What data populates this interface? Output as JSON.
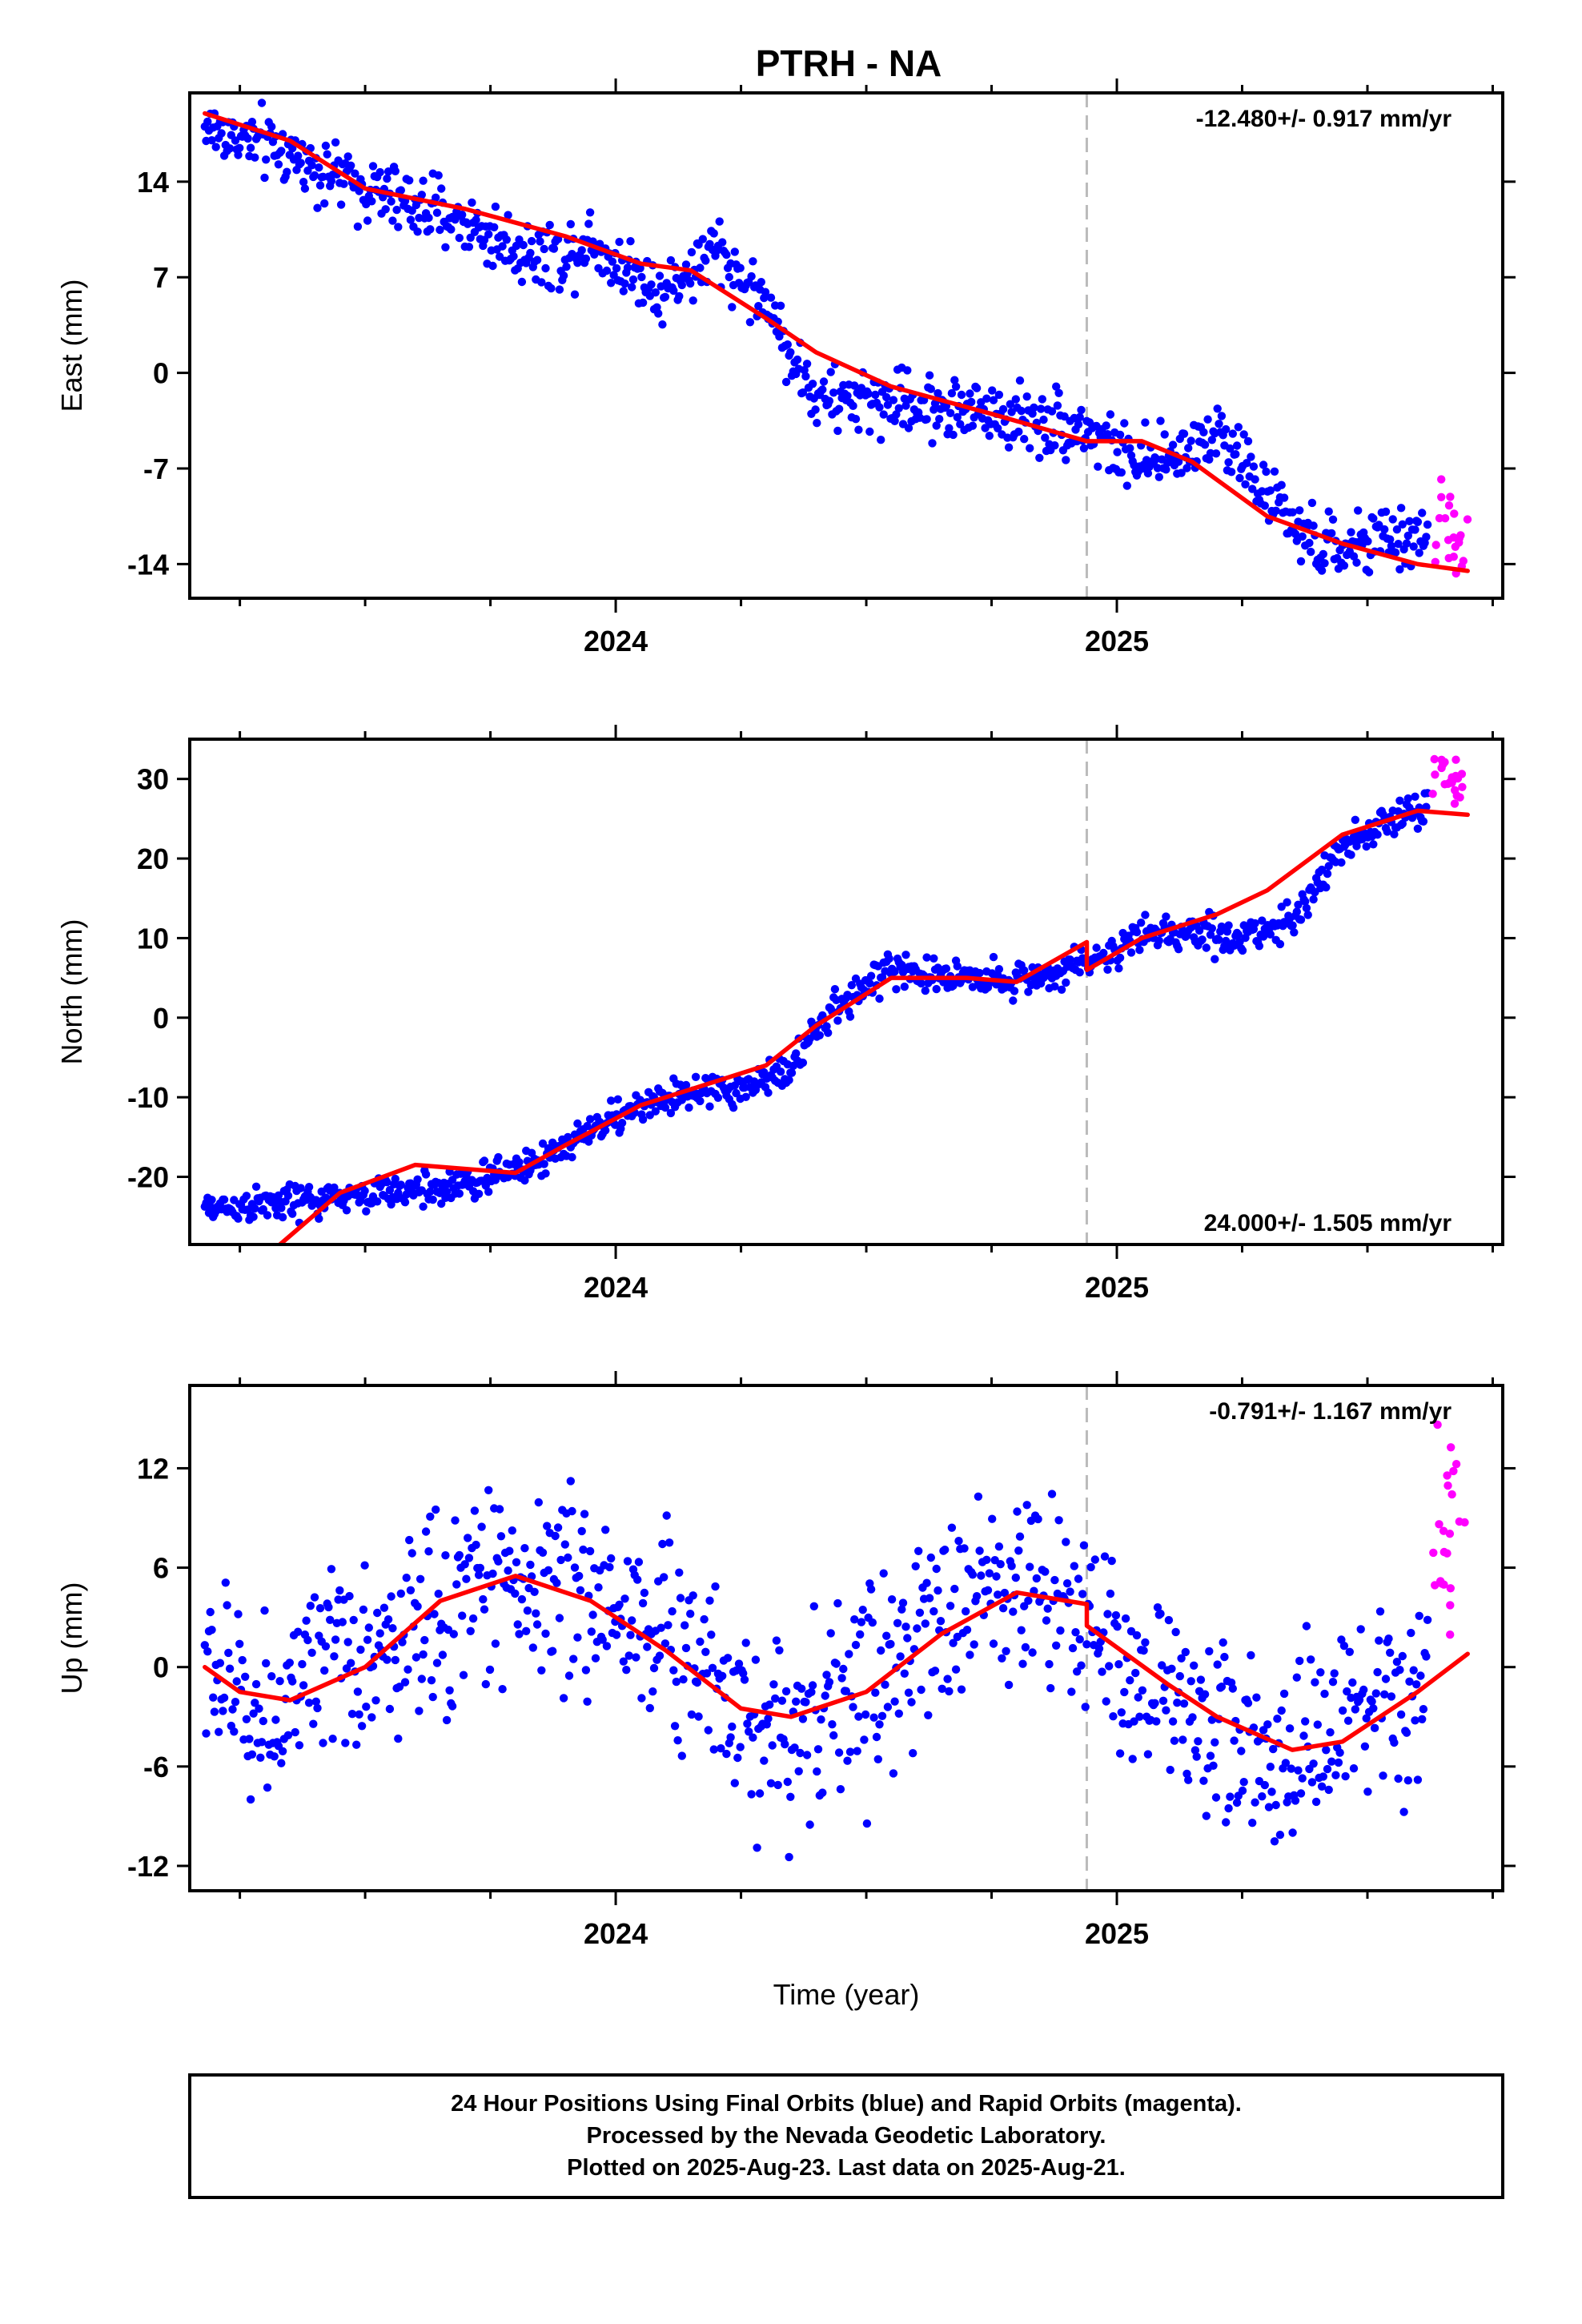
{
  "title": "PTRH - NA",
  "footer": {
    "lines": [
      "24 Hour Positions Using Final Orbits (blue) and Rapid Orbits (magenta).",
      "Processed by the Nevada Geodetic Laboratory.",
      "Plotted on 2025-Aug-23. Last data on 2025-Aug-21."
    ]
  },
  "colors": {
    "final_orbits": "#0000ff",
    "rapid_orbits": "#ff00ff",
    "model": "#ff0000",
    "equipment_change": "#bbbbbb",
    "frame": "#000000"
  },
  "chart_data": [
    {
      "type": "scatter",
      "ylabel": "East (mm)",
      "xlabel": "",
      "xlim": [
        2023.15,
        2025.77
      ],
      "ylim": [
        -16.5,
        20.5
      ],
      "xticks_major": [
        2024,
        2025
      ],
      "yticks": [
        -14,
        -7,
        0,
        7,
        14
      ],
      "rate_text": "-12.480+/- 0.917 mm/yr",
      "rate_position": "top-right",
      "equipment_change_x": 2024.94,
      "model_knots": [
        [
          2023.18,
          19
        ],
        [
          2023.35,
          17
        ],
        [
          2023.5,
          13.5
        ],
        [
          2023.7,
          12
        ],
        [
          2023.9,
          10
        ],
        [
          2024.05,
          8
        ],
        [
          2024.15,
          7.5
        ],
        [
          2024.3,
          4
        ],
        [
          2024.4,
          1.5
        ],
        [
          2024.55,
          -1
        ],
        [
          2024.75,
          -3
        ],
        [
          2024.94,
          -5
        ],
        [
          2025.05,
          -5
        ],
        [
          2025.15,
          -6.5
        ],
        [
          2025.3,
          -10.5
        ],
        [
          2025.45,
          -12.5
        ],
        [
          2025.6,
          -14
        ],
        [
          2025.7,
          -14.5
        ]
      ],
      "final_knots": [
        [
          2023.18,
          18
        ],
        [
          2023.35,
          16
        ],
        [
          2023.5,
          13.5
        ],
        [
          2023.7,
          11
        ],
        [
          2023.8,
          9
        ],
        [
          2023.9,
          8.5
        ],
        [
          2023.95,
          10
        ],
        [
          2024.0,
          8
        ],
        [
          2024.1,
          6
        ],
        [
          2024.2,
          9
        ],
        [
          2024.3,
          5
        ],
        [
          2024.4,
          -2
        ],
        [
          2024.55,
          -2
        ],
        [
          2024.75,
          -3
        ],
        [
          2024.94,
          -4
        ],
        [
          2025.05,
          -7
        ],
        [
          2025.12,
          -6
        ],
        [
          2025.2,
          -4
        ],
        [
          2025.3,
          -9
        ],
        [
          2025.4,
          -13
        ],
        [
          2025.6,
          -12
        ]
      ],
      "final_range": [
        2023.18,
        2025.62
      ],
      "final_noise": 1.2,
      "rapid_range": [
        2025.63,
        2025.7
      ],
      "rapid_mean": -12,
      "rapid_noise": 2.2
    },
    {
      "type": "scatter",
      "ylabel": "North (mm)",
      "xlabel": "",
      "xlim": [
        2023.15,
        2025.77
      ],
      "ylim": [
        -28.5,
        35
      ],
      "xticks_major": [
        2024,
        2025
      ],
      "yticks": [
        -20,
        -10,
        0,
        10,
        20,
        30
      ],
      "rate_text": "24.000+/- 1.505 mm/yr",
      "rate_position": "bottom-right",
      "equipment_change_x": 2024.94,
      "model_knots": [
        [
          2023.33,
          -28.5
        ],
        [
          2023.45,
          -22
        ],
        [
          2023.6,
          -18.5
        ],
        [
          2023.8,
          -19.5
        ],
        [
          2023.9,
          -16
        ],
        [
          2024.05,
          -11
        ],
        [
          2024.2,
          -8
        ],
        [
          2024.3,
          -6
        ],
        [
          2024.4,
          -1
        ],
        [
          2024.55,
          5
        ],
        [
          2024.7,
          5
        ],
        [
          2024.8,
          4.5
        ],
        [
          2024.94,
          9.5
        ],
        [
          2024.94,
          6
        ],
        [
          2025.05,
          10
        ],
        [
          2025.2,
          13
        ],
        [
          2025.3,
          16
        ],
        [
          2025.45,
          23
        ],
        [
          2025.6,
          26
        ],
        [
          2025.7,
          25.5
        ]
      ],
      "final_knots": [
        [
          2023.18,
          -24
        ],
        [
          2023.4,
          -23
        ],
        [
          2023.55,
          -22
        ],
        [
          2023.7,
          -21
        ],
        [
          2023.85,
          -18
        ],
        [
          2023.95,
          -14
        ],
        [
          2024.1,
          -10
        ],
        [
          2024.25,
          -9
        ],
        [
          2024.35,
          -6
        ],
        [
          2024.45,
          2
        ],
        [
          2024.55,
          6
        ],
        [
          2024.7,
          5
        ],
        [
          2024.85,
          5
        ],
        [
          2024.94,
          7
        ],
        [
          2025.05,
          10
        ],
        [
          2025.15,
          11
        ],
        [
          2025.25,
          10
        ],
        [
          2025.35,
          12
        ],
        [
          2025.45,
          22
        ],
        [
          2025.6,
          26
        ]
      ],
      "final_range": [
        2023.18,
        2025.62
      ],
      "final_noise": 1.1,
      "rapid_range": [
        2025.63,
        2025.7
      ],
      "rapid_mean": 30.5,
      "rapid_noise": 1.6
    },
    {
      "type": "scatter",
      "ylabel": "Up (mm)",
      "xlabel": "Time (year)",
      "xlim": [
        2023.15,
        2025.77
      ],
      "ylim": [
        -13.5,
        17
      ],
      "xticks_major": [
        2024,
        2025
      ],
      "yticks": [
        -12,
        -6,
        0,
        6,
        12
      ],
      "rate_text": "-0.791+/- 1.167 mm/yr",
      "rate_position": "top-right",
      "equipment_change_x": 2024.94,
      "model_knots": [
        [
          2023.18,
          0
        ],
        [
          2023.25,
          -1.5
        ],
        [
          2023.35,
          -2
        ],
        [
          2023.5,
          0
        ],
        [
          2023.65,
          4
        ],
        [
          2023.8,
          5.5
        ],
        [
          2023.95,
          4
        ],
        [
          2024.1,
          1
        ],
        [
          2024.25,
          -2.5
        ],
        [
          2024.35,
          -3
        ],
        [
          2024.5,
          -1.5
        ],
        [
          2024.65,
          2
        ],
        [
          2024.8,
          4.5
        ],
        [
          2024.94,
          3.8
        ],
        [
          2024.94,
          2.5
        ],
        [
          2025.1,
          -1
        ],
        [
          2025.2,
          -3
        ],
        [
          2025.35,
          -5
        ],
        [
          2025.45,
          -4.5
        ],
        [
          2025.6,
          -1.5
        ],
        [
          2025.7,
          0.8
        ]
      ],
      "final_knots": [
        [
          2023.18,
          0
        ],
        [
          2023.3,
          -3
        ],
        [
          2023.45,
          0
        ],
        [
          2023.6,
          2
        ],
        [
          2023.75,
          5.5
        ],
        [
          2023.9,
          5
        ],
        [
          2024.05,
          3
        ],
        [
          2024.2,
          0
        ],
        [
          2024.3,
          -4
        ],
        [
          2024.45,
          -2
        ],
        [
          2024.6,
          1
        ],
        [
          2024.75,
          5
        ],
        [
          2024.9,
          5
        ],
        [
          2025.0,
          0
        ],
        [
          2025.15,
          -2
        ],
        [
          2025.3,
          -6
        ],
        [
          2025.45,
          -4
        ],
        [
          2025.6,
          -2
        ]
      ],
      "final_range": [
        2023.18,
        2025.62
      ],
      "final_noise": 3.0,
      "rapid_range": [
        2025.63,
        2025.7
      ],
      "rapid_mean": 8,
      "rapid_noise": 3.5
    }
  ]
}
